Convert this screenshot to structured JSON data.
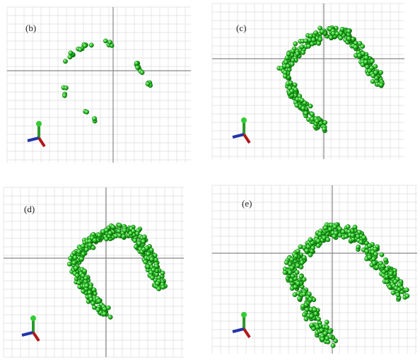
{
  "panels": [
    {
      "label": "(b)"
    },
    {
      "label": "(c)"
    },
    {
      "label": "(d)"
    },
    {
      "label": "(e)"
    }
  ]
}
